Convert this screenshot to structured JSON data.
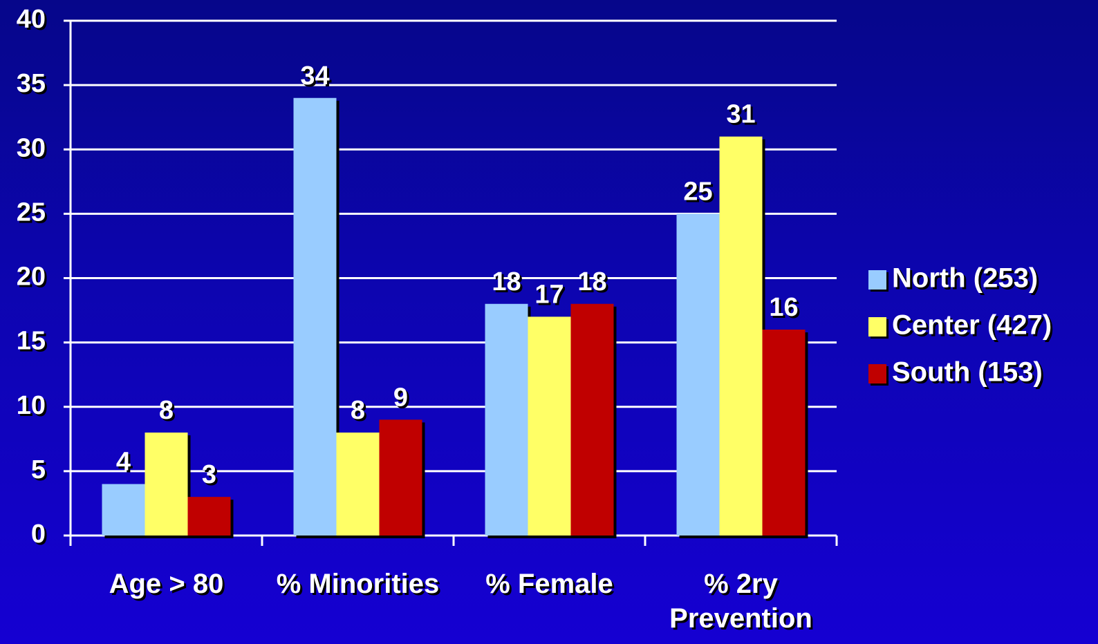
{
  "chart_data": {
    "type": "bar",
    "categories": [
      "Age > 80",
      "% Minorities",
      "% Female",
      "% 2ry Prevention"
    ],
    "series": [
      {
        "name": "North (253)",
        "color": "#99ccff",
        "values": [
          4,
          34,
          18,
          25
        ]
      },
      {
        "name": "Center (427)",
        "color": "#ffff66",
        "values": [
          8,
          8,
          17,
          31
        ]
      },
      {
        "name": "South (153)",
        "color": "#c00000",
        "values": [
          3,
          9,
          18,
          16
        ]
      }
    ],
    "ylim": [
      0,
      40
    ],
    "yticks": [
      0,
      5,
      10,
      15,
      20,
      25,
      30,
      35,
      40
    ],
    "grid": true,
    "legend": "right"
  }
}
